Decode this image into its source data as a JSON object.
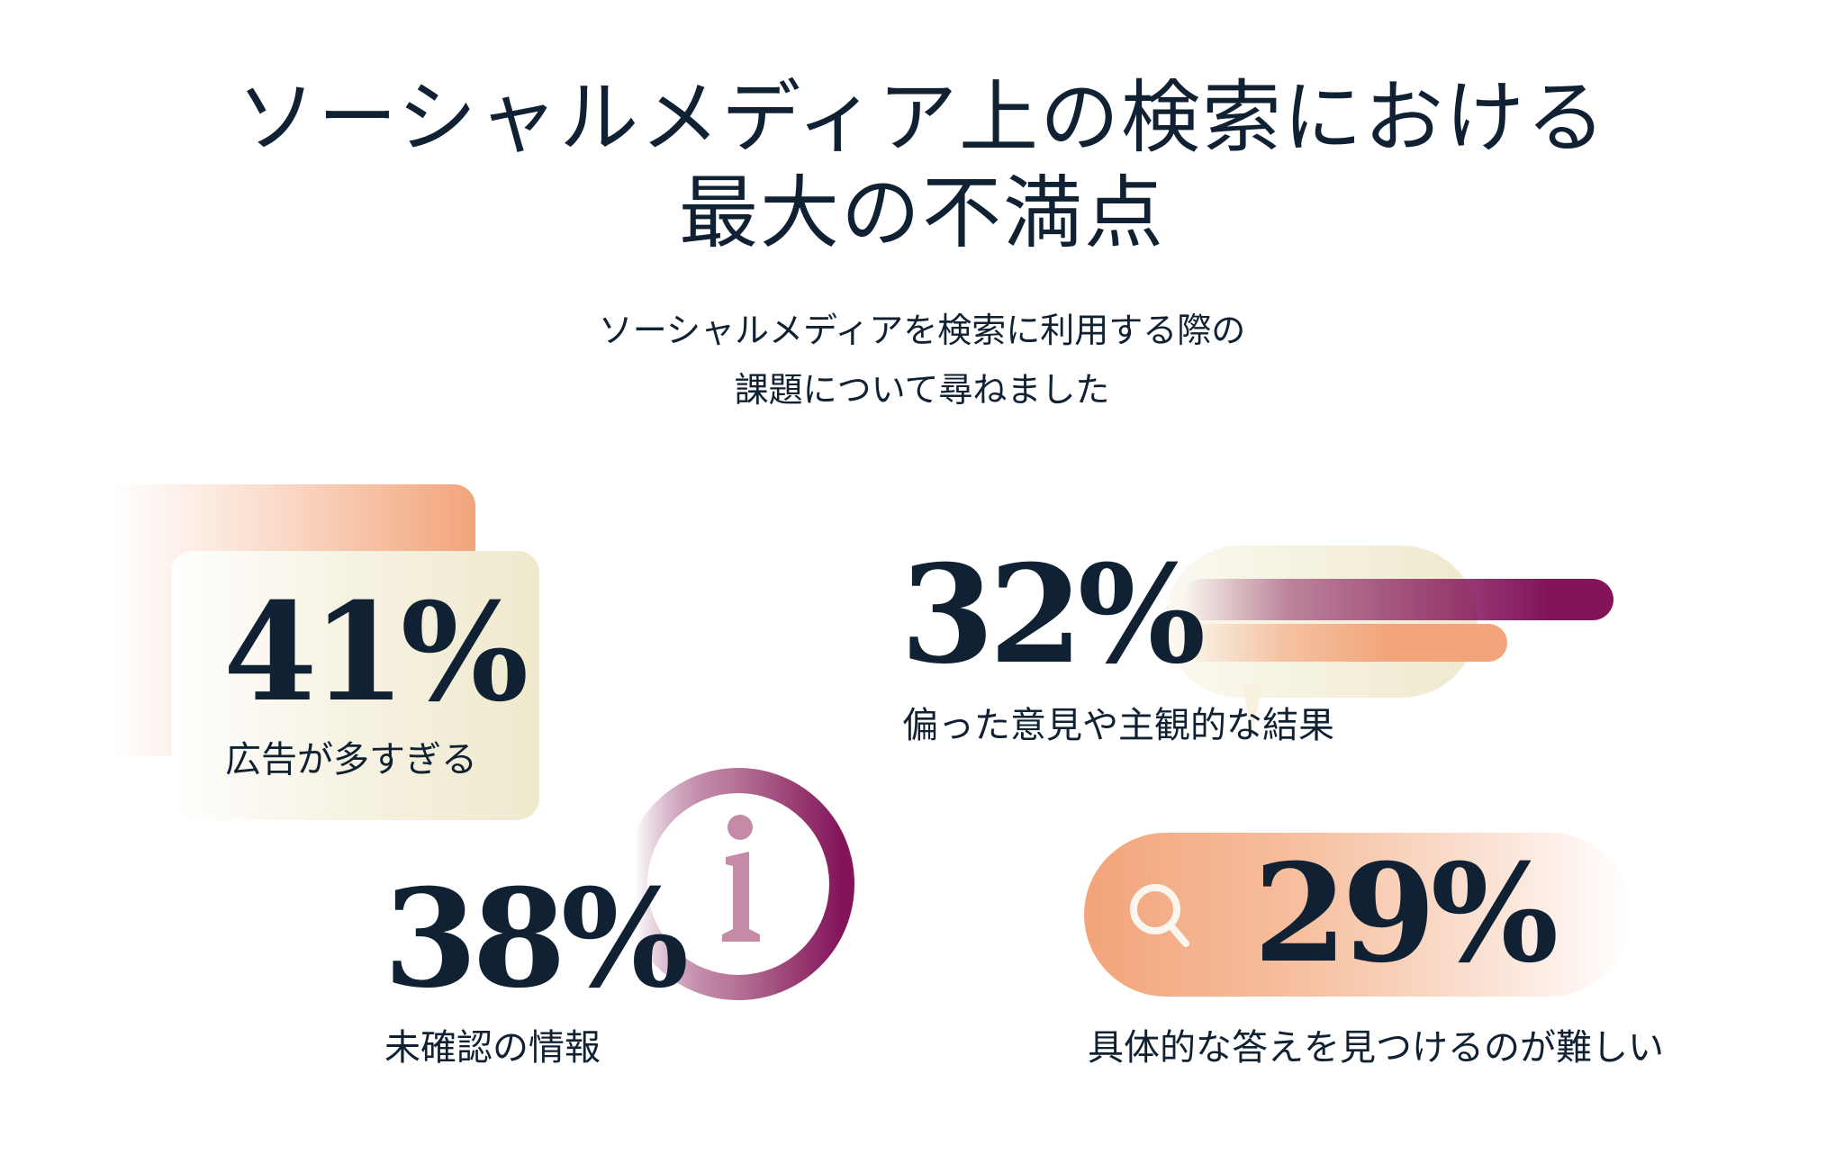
{
  "title": {
    "line1": "ソーシャルメディア上の検索における",
    "line2": "最大の不満点"
  },
  "subtitle": {
    "line1": "ソーシャルメディアを検索に利用する際の",
    "line2": "課題について尋ねました"
  },
  "stats": [
    {
      "value": "41%",
      "label": "広告が多すぎる"
    },
    {
      "value": "32%",
      "label": "偏った意見や主観的な結果"
    },
    {
      "value": "38%",
      "label": "未確認の情報",
      "icon": "info-icon"
    },
    {
      "value": "29%",
      "label": "具体的な答えを見つけるのが難しい",
      "icon": "search-icon"
    }
  ],
  "colors": {
    "text": "#0f2132",
    "orange": "#f2a47a",
    "plum": "#83145a",
    "cream": "#efe9cd"
  }
}
